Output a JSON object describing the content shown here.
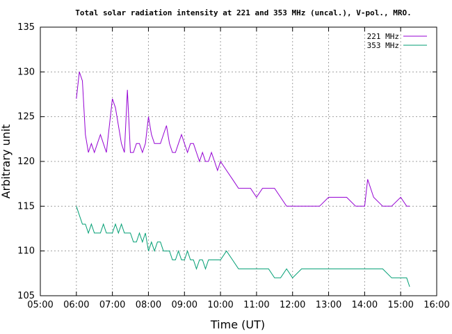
{
  "chart_data": {
    "type": "line",
    "title": "Total solar radiation intensity at 221 and 353 MHz (uncal.), V-pol., MRO.",
    "xlabel": "Time (UT)",
    "ylabel": "Arbitrary unit",
    "xlim": [
      "05:00",
      "16:00"
    ],
    "ylim": [
      105,
      135
    ],
    "xticks": [
      "05:00",
      "06:00",
      "07:00",
      "08:00",
      "09:00",
      "10:00",
      "11:00",
      "12:00",
      "13:00",
      "14:00",
      "15:00",
      "16:00"
    ],
    "yticks": [
      105,
      110,
      115,
      120,
      125,
      130,
      135
    ],
    "grid": true,
    "legend_position": "top-right",
    "series": [
      {
        "name": "221 MHz",
        "color": "#9400d3",
        "x": [
          "06:00",
          "06:05",
          "06:10",
          "06:15",
          "06:20",
          "06:25",
          "06:30",
          "06:35",
          "06:40",
          "06:45",
          "06:50",
          "06:55",
          "07:00",
          "07:05",
          "07:10",
          "07:15",
          "07:20",
          "07:25",
          "07:30",
          "07:35",
          "07:40",
          "07:45",
          "07:50",
          "07:55",
          "08:00",
          "08:05",
          "08:10",
          "08:15",
          "08:20",
          "08:25",
          "08:30",
          "08:35",
          "08:40",
          "08:45",
          "08:50",
          "08:55",
          "09:00",
          "09:05",
          "09:10",
          "09:15",
          "09:20",
          "09:25",
          "09:30",
          "09:35",
          "09:40",
          "09:45",
          "09:50",
          "09:55",
          "10:00",
          "10:10",
          "10:20",
          "10:30",
          "10:40",
          "10:50",
          "11:00",
          "11:10",
          "11:20",
          "11:30",
          "11:40",
          "11:50",
          "12:00",
          "12:15",
          "12:30",
          "12:45",
          "13:00",
          "13:15",
          "13:30",
          "13:45",
          "14:00",
          "14:05",
          "14:10",
          "14:15",
          "14:30",
          "14:45",
          "15:00",
          "15:10",
          "15:15"
        ],
        "values": [
          127,
          130,
          129,
          123,
          121,
          122,
          121,
          122,
          123,
          122,
          121,
          124,
          127,
          126,
          124,
          122,
          121,
          128,
          121,
          121,
          122,
          122,
          121,
          122,
          125,
          123,
          122,
          122,
          122,
          123,
          124,
          122,
          121,
          121,
          122,
          123,
          122,
          121,
          122,
          122,
          121,
          120,
          121,
          120,
          120,
          121,
          120,
          119,
          120,
          119,
          118,
          117,
          117,
          117,
          116,
          117,
          117,
          117,
          116,
          115,
          115,
          115,
          115,
          115,
          116,
          116,
          116,
          115,
          115,
          118,
          117,
          116,
          115,
          115,
          116,
          115,
          115
        ]
      },
      {
        "name": "353 MHz",
        "color": "#009e73",
        "x": [
          "06:00",
          "06:05",
          "06:10",
          "06:15",
          "06:20",
          "06:25",
          "06:30",
          "06:35",
          "06:40",
          "06:45",
          "06:50",
          "06:55",
          "07:00",
          "07:05",
          "07:10",
          "07:15",
          "07:20",
          "07:25",
          "07:30",
          "07:35",
          "07:40",
          "07:45",
          "07:50",
          "07:55",
          "08:00",
          "08:05",
          "08:10",
          "08:15",
          "08:20",
          "08:25",
          "08:30",
          "08:35",
          "08:40",
          "08:45",
          "08:50",
          "08:55",
          "09:00",
          "09:05",
          "09:10",
          "09:15",
          "09:20",
          "09:25",
          "09:30",
          "09:35",
          "09:40",
          "09:45",
          "09:50",
          "09:55",
          "10:00",
          "10:10",
          "10:20",
          "10:30",
          "10:40",
          "10:50",
          "11:00",
          "11:10",
          "11:20",
          "11:30",
          "11:40",
          "11:50",
          "12:00",
          "12:15",
          "12:30",
          "12:45",
          "13:00",
          "13:15",
          "13:30",
          "13:45",
          "14:00",
          "14:10",
          "14:20",
          "14:30",
          "14:45",
          "15:00",
          "15:10",
          "15:15"
        ],
        "values": [
          115,
          114,
          113,
          113,
          112,
          113,
          112,
          112,
          112,
          113,
          112,
          112,
          112,
          113,
          112,
          113,
          112,
          112,
          112,
          111,
          111,
          112,
          111,
          112,
          110,
          111,
          110,
          111,
          111,
          110,
          110,
          110,
          109,
          109,
          110,
          109,
          109,
          110,
          109,
          109,
          108,
          109,
          109,
          108,
          109,
          109,
          109,
          109,
          109,
          110,
          109,
          108,
          108,
          108,
          108,
          108,
          108,
          107,
          107,
          108,
          107,
          108,
          108,
          108,
          108,
          108,
          108,
          108,
          108,
          108,
          108,
          108,
          107,
          107,
          107,
          106
        ]
      }
    ]
  }
}
